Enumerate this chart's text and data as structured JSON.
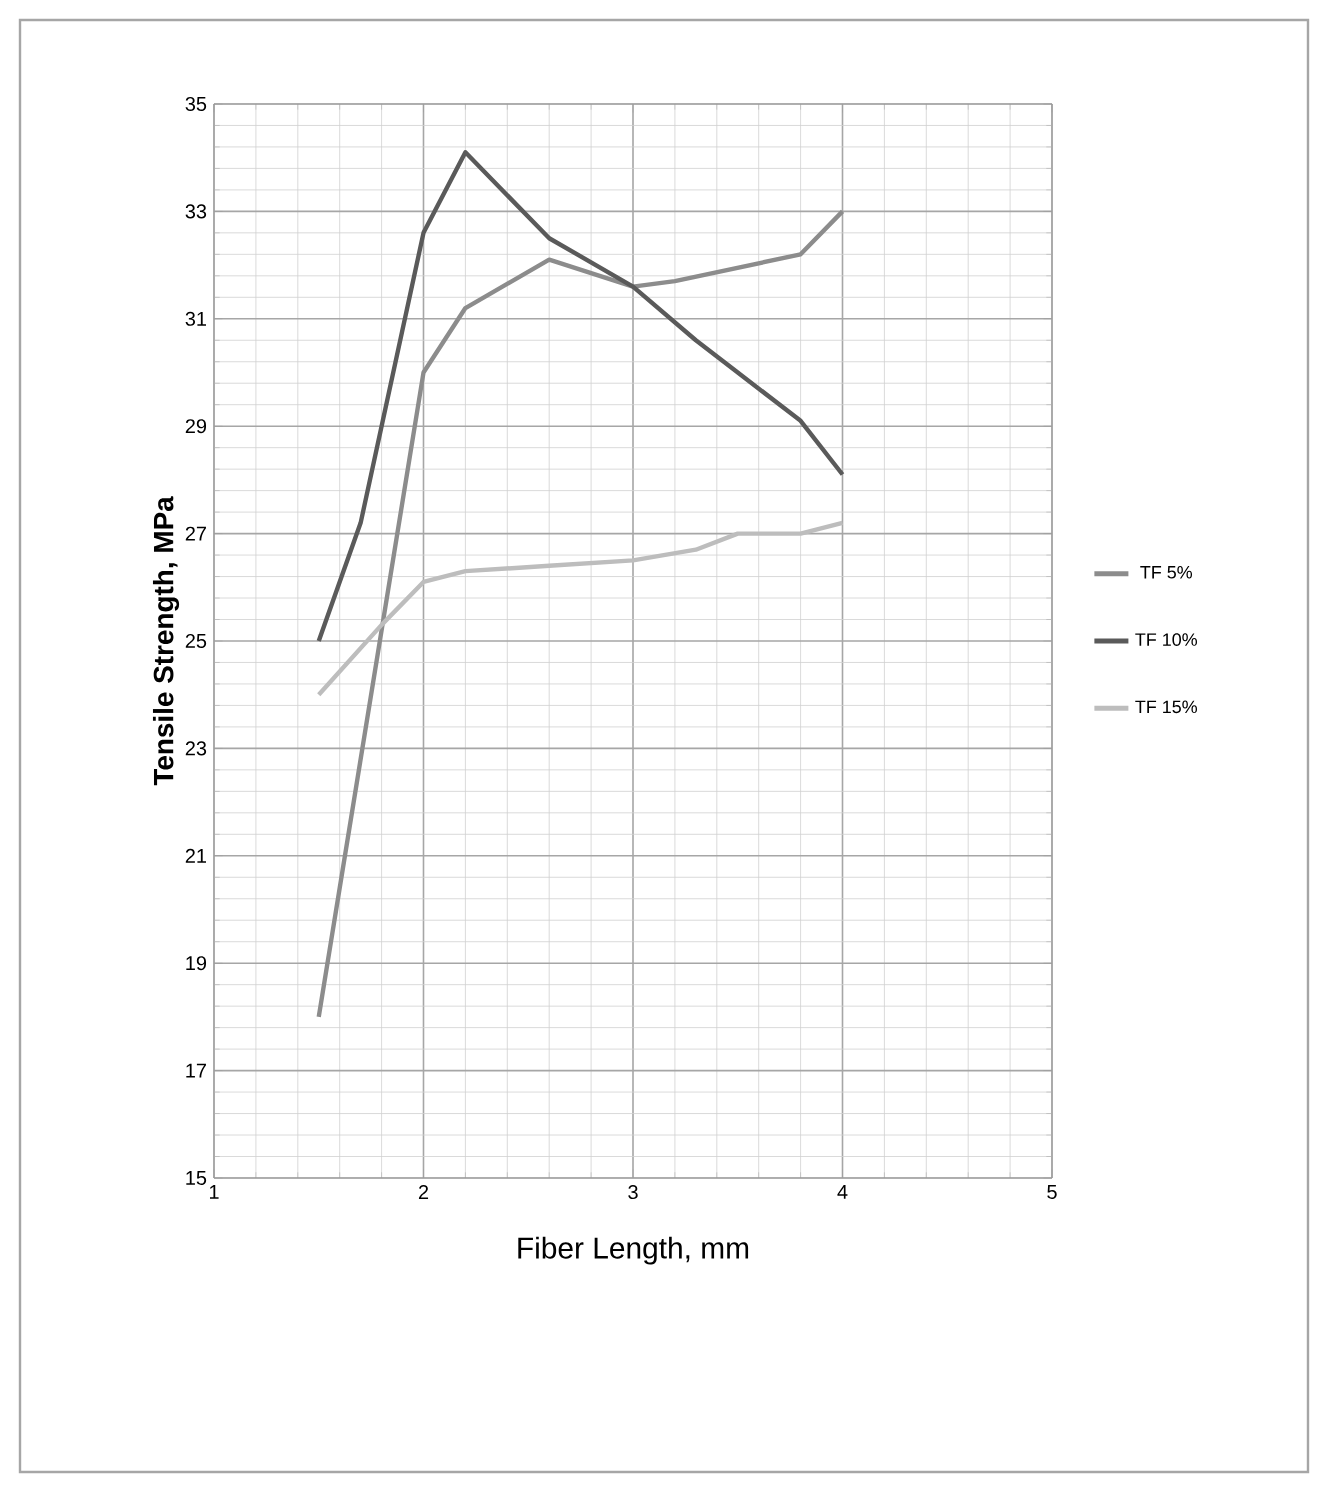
{
  "chart_data": {
    "type": "line",
    "xlabel": "Fiber Length, mm",
    "ylabel": "Tensile Strength, MPa",
    "xlim": [
      1,
      5
    ],
    "xticks": [
      1,
      2,
      3,
      4,
      5
    ],
    "ylim": [
      15,
      35
    ],
    "yticks": [
      15,
      17,
      19,
      21,
      23,
      25,
      27,
      29,
      31,
      33,
      35
    ],
    "grid": true,
    "legend": "right",
    "marker": "none",
    "line_style": "solid",
    "series": [
      {
        "name": "TF 5%",
        "color": "#8c8c8c",
        "x": [
          1.5,
          2,
          2.2,
          2.6,
          3,
          3.2,
          3.8,
          4
        ],
        "values": [
          18,
          30,
          31.2,
          32.1,
          31.6,
          31.7,
          32.2,
          33
        ]
      },
      {
        "name": "TF 10%",
        "color": "#5a5a5a",
        "x": [
          1.5,
          1.7,
          2,
          2.2,
          2.6,
          3,
          3.3,
          3.5,
          3.8,
          4
        ],
        "values": [
          25,
          27.2,
          32.6,
          34.1,
          32.5,
          31.6,
          30.6,
          30,
          29.1,
          28.1
        ]
      },
      {
        "name": "TF 15%",
        "color": "#bdbdbd",
        "x": [
          1.5,
          1.8,
          2,
          2.2,
          2.6,
          3,
          3.3,
          3.5,
          3.8,
          4
        ],
        "values": [
          24,
          25.3,
          26.1,
          26.3,
          26.4,
          26.5,
          26.7,
          27,
          27,
          27.2
        ]
      }
    ]
  }
}
